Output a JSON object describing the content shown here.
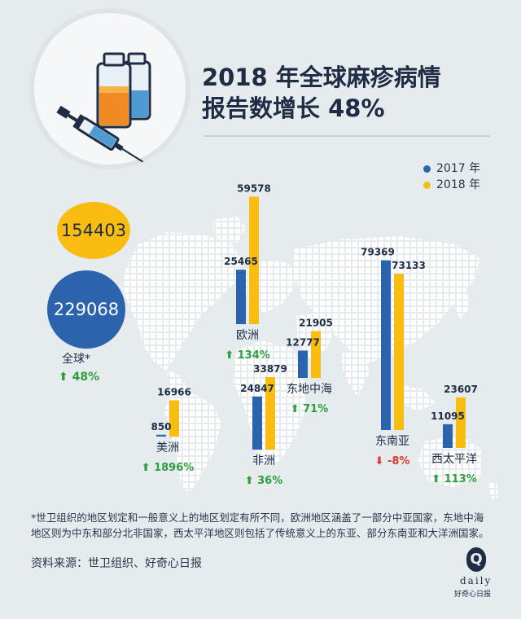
{
  "colors": {
    "background": "#e6ebee",
    "series_2017": "#2b63ad",
    "series_2018": "#f9bd12",
    "increase": "#2f9e3e",
    "decrease": "#d83a2e",
    "text": "#1f2d44",
    "map_dots": "#ffffff"
  },
  "header": {
    "title_line1": "2018 年全球麻疹病情",
    "title_line2": "报告数增长 48%",
    "illustration": "vaccine-syringe-illustration"
  },
  "legend": {
    "items": [
      {
        "label": "2017 年",
        "color": "#2b63ad"
      },
      {
        "label": "2018 年",
        "color": "#f9bd12"
      }
    ]
  },
  "global": {
    "value_2017": "154403",
    "value_2018": "229068",
    "label": "全球*",
    "change": "⬆ 48%",
    "change_direction": "up"
  },
  "chart_data": {
    "type": "bar",
    "categories": [
      "美洲",
      "非洲",
      "欧洲",
      "东地中海",
      "东南亚",
      "西太平洋"
    ],
    "series": [
      {
        "name": "2017 年",
        "values": [
          850,
          24847,
          25465,
          12777,
          79369,
          11095
        ]
      },
      {
        "name": "2018 年",
        "values": [
          16966,
          33879,
          59578,
          21905,
          73133,
          23607
        ]
      }
    ],
    "changes": [
      "⬆ 1896%",
      "⬆ 36%",
      "⬆ 134%",
      "⬆ 71%",
      "⬇ -8%",
      "⬆ 113%"
    ],
    "change_directions": [
      "up",
      "up",
      "up",
      "up",
      "down",
      "up"
    ],
    "total": {
      "2017": 154403,
      "2018": 229068,
      "change": "⬆ 48%"
    },
    "ylim": [
      0,
      80000
    ],
    "legend_position": "top-right",
    "grid": false,
    "xlabel": "",
    "ylabel": ""
  },
  "footnote": "*世卫组织的地区划定和一般意义上的地区划定有所不同，欧洲地区涵盖了一部分中亚国家，东地中海地区则为中东和部分北非国家，西太平洋地区则包括了传统意义上的东亚、部分东南亚和大洋洲国家。",
  "source": "资料来源：世卫组织、好奇心日报",
  "logo": {
    "letter": "Q",
    "word": "daily",
    "tagline": "好奇心日报"
  }
}
